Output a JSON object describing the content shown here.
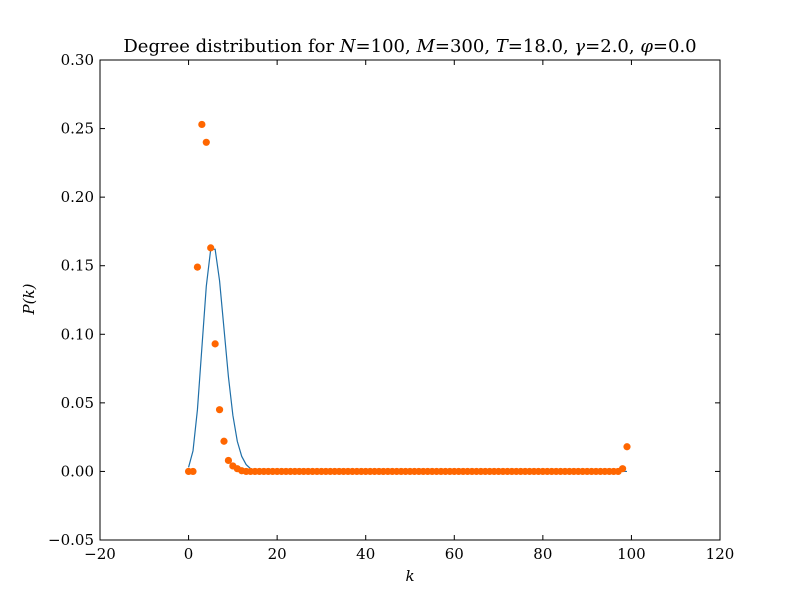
{
  "chart_data": {
    "type": "scatter",
    "title": "Degree distribution for N=100, M=300, T=18.0, γ=2.0, φ=0.0",
    "title_parts": [
      {
        "t": "Degree distribution for ",
        "math": false
      },
      {
        "t": "N",
        "math": true
      },
      {
        "t": "=100, ",
        "math": false
      },
      {
        "t": "M",
        "math": true
      },
      {
        "t": "=300, ",
        "math": false
      },
      {
        "t": "T",
        "math": true
      },
      {
        "t": "=18.0, ",
        "math": false
      },
      {
        "t": "γ",
        "math": true
      },
      {
        "t": "=2.0, ",
        "math": false
      },
      {
        "t": "φ",
        "math": true
      },
      {
        "t": "=0.0",
        "math": false
      }
    ],
    "xlabel": "k",
    "ylabel": "P(k)",
    "xlim": [
      -20,
      120
    ],
    "ylim": [
      -0.05,
      0.3
    ],
    "xticks": [
      "−20",
      "0",
      "20",
      "40",
      "60",
      "80",
      "100",
      "120"
    ],
    "xtick_values": [
      -20,
      0,
      20,
      40,
      60,
      80,
      100,
      120
    ],
    "yticks": [
      "−0.05",
      "0.00",
      "0.05",
      "0.10",
      "0.15",
      "0.20",
      "0.25",
      "0.30"
    ],
    "ytick_values": [
      -0.05,
      0.0,
      0.05,
      0.1,
      0.15,
      0.2,
      0.25,
      0.3
    ],
    "grid": false,
    "series": [
      {
        "kind": "scatter",
        "color": "#ff6600",
        "points": [
          [
            0,
            0.0
          ],
          [
            1,
            0.0
          ],
          [
            2,
            0.149
          ],
          [
            3,
            0.253
          ],
          [
            4,
            0.24
          ],
          [
            5,
            0.163
          ],
          [
            6,
            0.093
          ],
          [
            7,
            0.045
          ],
          [
            8,
            0.022
          ],
          [
            9,
            0.008
          ],
          [
            10,
            0.004
          ],
          [
            11,
            0.002
          ],
          [
            12,
            0.0005
          ],
          [
            13,
            0.0
          ],
          [
            14,
            0.0
          ],
          [
            15,
            0.0
          ],
          [
            16,
            0.0
          ],
          [
            17,
            0.0
          ],
          [
            18,
            0.0
          ],
          [
            19,
            0.0
          ],
          [
            20,
            0.0
          ],
          [
            21,
            0.0
          ],
          [
            22,
            0.0
          ],
          [
            23,
            0.0
          ],
          [
            24,
            0.0
          ],
          [
            25,
            0.0
          ],
          [
            26,
            0.0
          ],
          [
            27,
            0.0
          ],
          [
            28,
            0.0
          ],
          [
            29,
            0.0
          ],
          [
            30,
            0.0
          ],
          [
            31,
            0.0
          ],
          [
            32,
            0.0
          ],
          [
            33,
            0.0
          ],
          [
            34,
            0.0
          ],
          [
            35,
            0.0
          ],
          [
            36,
            0.0
          ],
          [
            37,
            0.0
          ],
          [
            38,
            0.0
          ],
          [
            39,
            0.0
          ],
          [
            40,
            0.0
          ],
          [
            41,
            0.0
          ],
          [
            42,
            0.0
          ],
          [
            43,
            0.0
          ],
          [
            44,
            0.0
          ],
          [
            45,
            0.0
          ],
          [
            46,
            0.0
          ],
          [
            47,
            0.0
          ],
          [
            48,
            0.0
          ],
          [
            49,
            0.0
          ],
          [
            50,
            0.0
          ],
          [
            51,
            0.0
          ],
          [
            52,
            0.0
          ],
          [
            53,
            0.0
          ],
          [
            54,
            0.0
          ],
          [
            55,
            0.0
          ],
          [
            56,
            0.0
          ],
          [
            57,
            0.0
          ],
          [
            58,
            0.0
          ],
          [
            59,
            0.0
          ],
          [
            60,
            0.0
          ],
          [
            61,
            0.0
          ],
          [
            62,
            0.0
          ],
          [
            63,
            0.0
          ],
          [
            64,
            0.0
          ],
          [
            65,
            0.0
          ],
          [
            66,
            0.0
          ],
          [
            67,
            0.0
          ],
          [
            68,
            0.0
          ],
          [
            69,
            0.0
          ],
          [
            70,
            0.0
          ],
          [
            71,
            0.0
          ],
          [
            72,
            0.0
          ],
          [
            73,
            0.0
          ],
          [
            74,
            0.0
          ],
          [
            75,
            0.0
          ],
          [
            76,
            0.0
          ],
          [
            77,
            0.0
          ],
          [
            78,
            0.0
          ],
          [
            79,
            0.0
          ],
          [
            80,
            0.0
          ],
          [
            81,
            0.0
          ],
          [
            82,
            0.0
          ],
          [
            83,
            0.0
          ],
          [
            84,
            0.0
          ],
          [
            85,
            0.0
          ],
          [
            86,
            0.0
          ],
          [
            87,
            0.0
          ],
          [
            88,
            0.0
          ],
          [
            89,
            0.0
          ],
          [
            90,
            0.0
          ],
          [
            91,
            0.0
          ],
          [
            92,
            0.0
          ],
          [
            93,
            0.0
          ],
          [
            94,
            0.0
          ],
          [
            95,
            0.0
          ],
          [
            96,
            0.0
          ],
          [
            97,
            0.0
          ],
          [
            98,
            0.002
          ],
          [
            99,
            0.018
          ]
        ]
      },
      {
        "kind": "line",
        "color": "#1f6fa8",
        "points": [
          [
            0,
            0.003
          ],
          [
            1,
            0.015
          ],
          [
            2,
            0.045
          ],
          [
            3,
            0.09
          ],
          [
            4,
            0.135
          ],
          [
            5,
            0.162
          ],
          [
            6,
            0.162
          ],
          [
            7,
            0.139
          ],
          [
            8,
            0.104
          ],
          [
            9,
            0.069
          ],
          [
            10,
            0.041
          ],
          [
            11,
            0.022
          ],
          [
            12,
            0.011
          ],
          [
            13,
            0.005
          ],
          [
            14,
            0.002
          ],
          [
            15,
            0.001
          ],
          [
            16,
            0.0
          ],
          [
            17,
            0.0
          ],
          [
            18,
            0.0
          ],
          [
            19,
            0.0
          ],
          [
            20,
            0.0
          ],
          [
            30,
            0.0
          ],
          [
            40,
            0.0
          ],
          [
            50,
            0.0
          ],
          [
            60,
            0.0
          ],
          [
            70,
            0.0
          ],
          [
            80,
            0.0
          ],
          [
            90,
            0.0
          ],
          [
            99,
            0.0
          ]
        ]
      }
    ]
  }
}
